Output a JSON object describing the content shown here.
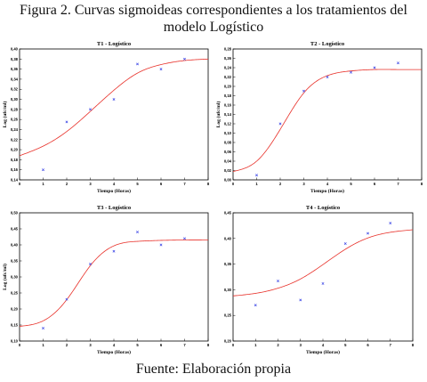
{
  "caption": {
    "figure": "Figura 2. Curvas sigmoideas correspondientes a los tratamientos del modelo Logístico",
    "source": "Fuente: Elaboración propia"
  },
  "colors": {
    "fit_curve": "#e8312a",
    "data_points": "#3a45e6",
    "frame": "#000000"
  },
  "chart_data": [
    {
      "type": "scatter",
      "title": "T1 - Logístico",
      "xlabel": "Tiempo (Horas)",
      "ylabel": "Log (ufc/ml)",
      "xlim": [
        0,
        8
      ],
      "ylim": [
        0.14,
        0.4
      ],
      "xticks": [
        "0",
        "1",
        "2",
        "3",
        "4",
        "5",
        "6",
        "7",
        "8"
      ],
      "yticks": [
        "0,14",
        "0,16",
        "0,18",
        "0,20",
        "0,22",
        "0,24",
        "0,26",
        "0,28",
        "0,30",
        "0,32",
        "0,34",
        "0,36",
        "0,38",
        "0,40"
      ],
      "series": [
        {
          "kind": "points",
          "x": [
            1,
            2,
            3,
            4,
            5,
            6,
            7
          ],
          "y": [
            0.16,
            0.255,
            0.28,
            0.3,
            0.37,
            0.36,
            0.38
          ]
        },
        {
          "kind": "fitted_curve",
          "curve": "logistic",
          "x": [
            0,
            1,
            2,
            3,
            4,
            5,
            6,
            7,
            8
          ],
          "y": [
            0.188,
            0.207,
            0.236,
            0.276,
            0.318,
            0.352,
            0.369,
            0.377,
            0.38
          ]
        }
      ]
    },
    {
      "type": "scatter",
      "title": "T2 - Logístico",
      "xlabel": "Tiempo (Horas)",
      "ylabel": "Log (ufc/ml)",
      "xlim": [
        0,
        8
      ],
      "ylim": [
        0.0,
        0.28
      ],
      "xticks": [
        "0",
        "1",
        "2",
        "3",
        "4",
        "5",
        "6",
        "7",
        "8"
      ],
      "yticks": [
        "0,00",
        "0,02",
        "0,04",
        "0,06",
        "0,08",
        "0,10",
        "0,12",
        "0,14",
        "0,16",
        "0,18",
        "0,20",
        "0,22",
        "0,24",
        "0,26",
        "0,28"
      ],
      "series": [
        {
          "kind": "points",
          "x": [
            1,
            2,
            3,
            4,
            5,
            6,
            7
          ],
          "y": [
            0.01,
            0.12,
            0.19,
            0.22,
            0.23,
            0.24,
            0.25
          ]
        },
        {
          "kind": "fitted_curve",
          "curve": "logistic",
          "x": [
            0,
            1,
            2,
            3,
            4,
            5,
            6,
            7,
            8
          ],
          "y": [
            0.018,
            0.04,
            0.108,
            0.186,
            0.223,
            0.233,
            0.236,
            0.236,
            0.236
          ]
        }
      ]
    },
    {
      "type": "scatter",
      "title": "T3 - Logístico",
      "xlabel": "Tiempo (Horas)",
      "ylabel": "Log (ufc/ml)",
      "xlim": [
        0,
        8
      ],
      "ylim": [
        0.1,
        0.5
      ],
      "xticks": [
        "0",
        "1",
        "2",
        "3",
        "4",
        "5",
        "6",
        "7",
        "8"
      ],
      "yticks": [
        "0,10",
        "0,15",
        "0,20",
        "0,25",
        "0,30",
        "0,35",
        "0,40",
        "0,45",
        "0,50"
      ],
      "series": [
        {
          "kind": "points",
          "x": [
            1,
            2,
            3,
            4,
            5,
            6,
            7
          ],
          "y": [
            0.14,
            0.23,
            0.34,
            0.38,
            0.44,
            0.4,
            0.42
          ]
        },
        {
          "kind": "fitted_curve",
          "curve": "logistic",
          "x": [
            0,
            1,
            2,
            3,
            4,
            5,
            6,
            7,
            8
          ],
          "y": [
            0.146,
            0.163,
            0.229,
            0.335,
            0.397,
            0.411,
            0.414,
            0.415,
            0.415
          ]
        }
      ]
    },
    {
      "type": "scatter",
      "title": "T4 - Logístico",
      "xlabel": "Tiempo (Horas)",
      "ylabel": "",
      "xlim": [
        0,
        8
      ],
      "ylim": [
        0.2,
        0.45
      ],
      "xticks": [
        "0",
        "1",
        "2",
        "3",
        "4",
        "5",
        "6",
        "7",
        "8"
      ],
      "yticks": [
        "0,20",
        "0,25",
        "0,30",
        "0,35",
        "0,40",
        "0,45"
      ],
      "series": [
        {
          "kind": "points",
          "x": [
            1,
            2,
            3,
            4,
            5,
            6,
            7
          ],
          "y": [
            0.27,
            0.317,
            0.28,
            0.312,
            0.39,
            0.41,
            0.43
          ]
        },
        {
          "kind": "fitted_curve",
          "curve": "logistic",
          "x": [
            0,
            1,
            2,
            3,
            4,
            5,
            6,
            7,
            8
          ],
          "y": [
            0.288,
            0.293,
            0.303,
            0.321,
            0.349,
            0.379,
            0.401,
            0.412,
            0.417
          ]
        }
      ]
    }
  ]
}
